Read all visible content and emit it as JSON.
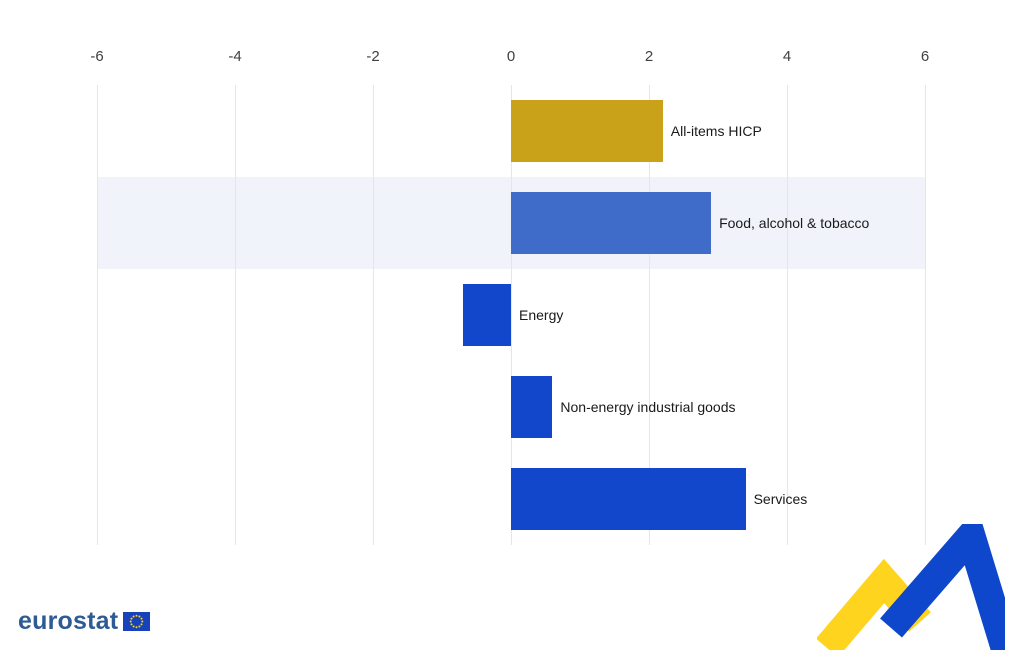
{
  "chart_data": {
    "type": "bar",
    "orientation": "horizontal",
    "categories": [
      "All-items HICP",
      "Food, alcohol & tobacco",
      "Energy",
      "Non-energy industrial goods",
      "Services"
    ],
    "values": [
      2.2,
      2.9,
      -0.7,
      0.6,
      3.4
    ],
    "xlim": [
      -6,
      6
    ],
    "x_ticks": [
      "-6",
      "-4",
      "-2",
      "0",
      "2",
      "4",
      "6"
    ],
    "x_tick_values": [
      -6,
      -4,
      -2,
      0,
      2,
      4,
      6
    ],
    "grid": true,
    "axis_position": "top",
    "label_position": "outside-right-of-bar",
    "bar_colors": [
      "#C9A21A",
      "#3E6CC8",
      "#1247CB",
      "#1247CB",
      "#1247CB"
    ],
    "highlighted_row_index": 1,
    "highlight_color": "#F1F3FB",
    "gridline_color": "#E4E6E9"
  },
  "branding": {
    "wordmark": "eurostat",
    "wordmark_color": "#2E5B94",
    "flag_blue": "#1742BB",
    "star_yellow": "#FFD617",
    "logo_yellow": "#FFD41E",
    "logo_blue": "#0E47CB"
  }
}
